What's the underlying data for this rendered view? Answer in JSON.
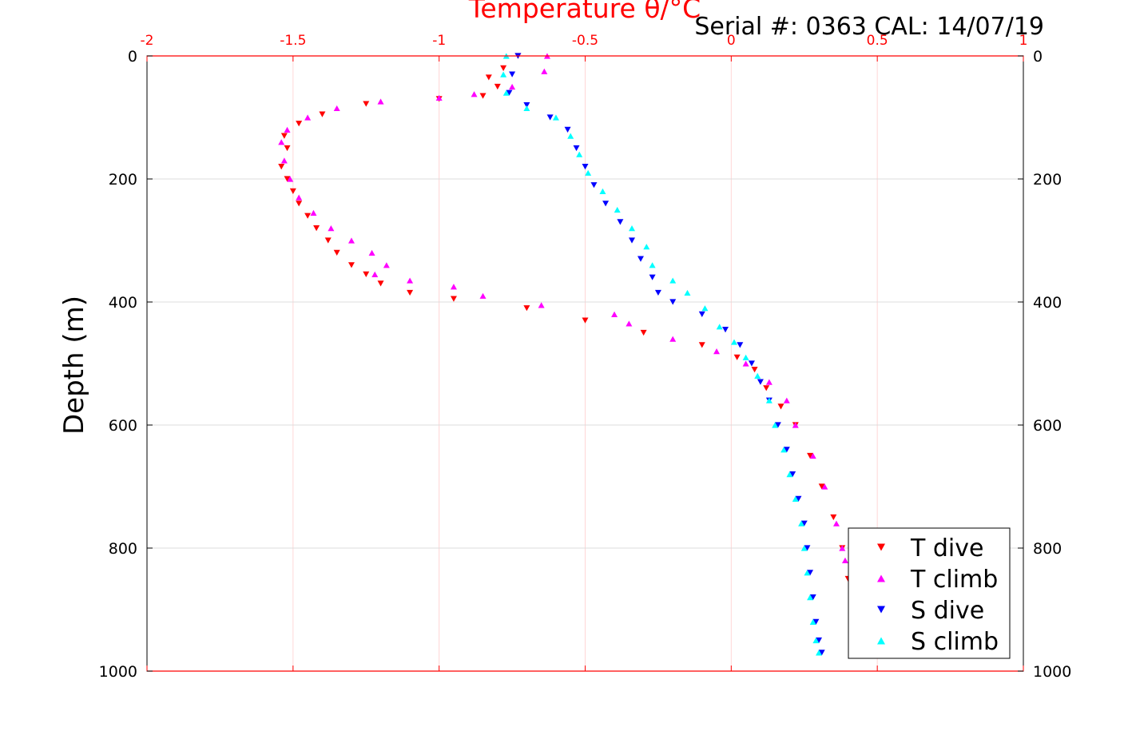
{
  "chart_data": {
    "type": "scatter",
    "title": "Temperature θ/°C",
    "annotation": "Serial #: 0363  CAL: 14/07/19",
    "ylabel": "Depth (m)",
    "xlim": [
      -2,
      1
    ],
    "ylim": [
      0,
      1000
    ],
    "y_reversed": true,
    "x_axis_position": "top",
    "xticks": [
      "-2",
      "-1.5",
      "-1",
      "-0.5",
      "0",
      "0.5",
      "1"
    ],
    "yticks": [
      "0",
      "200",
      "400",
      "600",
      "800",
      "1000"
    ],
    "grid": true,
    "legend_position": "bottom-right",
    "colors": {
      "x_axis": "#ff0000",
      "y_axis": "#000000",
      "grid": "#d9d9d9"
    },
    "series": [
      {
        "name": "T dive",
        "marker": "triangle-down",
        "color": "#ff0000",
        "points": [
          [
            -0.73,
            0
          ],
          [
            -0.78,
            20
          ],
          [
            -0.83,
            35
          ],
          [
            -0.8,
            50
          ],
          [
            -0.85,
            65
          ],
          [
            -1.0,
            70
          ],
          [
            -1.25,
            78
          ],
          [
            -1.4,
            95
          ],
          [
            -1.48,
            110
          ],
          [
            -1.53,
            130
          ],
          [
            -1.52,
            150
          ],
          [
            -1.54,
            180
          ],
          [
            -1.52,
            200
          ],
          [
            -1.5,
            220
          ],
          [
            -1.48,
            240
          ],
          [
            -1.45,
            260
          ],
          [
            -1.42,
            280
          ],
          [
            -1.38,
            300
          ],
          [
            -1.35,
            320
          ],
          [
            -1.3,
            340
          ],
          [
            -1.25,
            355
          ],
          [
            -1.2,
            370
          ],
          [
            -1.1,
            385
          ],
          [
            -0.95,
            395
          ],
          [
            -0.7,
            410
          ],
          [
            -0.5,
            430
          ],
          [
            -0.3,
            450
          ],
          [
            -0.1,
            470
          ],
          [
            0.02,
            490
          ],
          [
            0.08,
            510
          ],
          [
            0.12,
            540
          ],
          [
            0.17,
            570
          ],
          [
            0.22,
            600
          ],
          [
            0.27,
            650
          ],
          [
            0.31,
            700
          ],
          [
            0.35,
            750
          ],
          [
            0.38,
            800
          ],
          [
            0.4,
            850
          ]
        ]
      },
      {
        "name": "T climb",
        "marker": "triangle-up",
        "color": "#ff00ff",
        "points": [
          [
            -0.63,
            0
          ],
          [
            -0.64,
            25
          ],
          [
            -0.75,
            50
          ],
          [
            -0.88,
            62
          ],
          [
            -1.0,
            68
          ],
          [
            -1.2,
            74
          ],
          [
            -1.35,
            85
          ],
          [
            -1.45,
            100
          ],
          [
            -1.52,
            120
          ],
          [
            -1.54,
            140
          ],
          [
            -1.53,
            170
          ],
          [
            -1.51,
            200
          ],
          [
            -1.48,
            230
          ],
          [
            -1.43,
            255
          ],
          [
            -1.37,
            280
          ],
          [
            -1.3,
            300
          ],
          [
            -1.23,
            320
          ],
          [
            -1.18,
            340
          ],
          [
            -1.22,
            355
          ],
          [
            -1.1,
            365
          ],
          [
            -0.95,
            375
          ],
          [
            -0.85,
            390
          ],
          [
            -0.65,
            405
          ],
          [
            -0.4,
            420
          ],
          [
            -0.35,
            435
          ],
          [
            -0.2,
            460
          ],
          [
            -0.05,
            480
          ],
          [
            0.05,
            500
          ],
          [
            0.13,
            530
          ],
          [
            0.19,
            560
          ],
          [
            0.22,
            600
          ],
          [
            0.28,
            650
          ],
          [
            0.32,
            700
          ],
          [
            0.36,
            760
          ],
          [
            0.38,
            800
          ],
          [
            0.39,
            820
          ]
        ]
      },
      {
        "name": "S dive",
        "marker": "triangle-down",
        "color": "#0000ff",
        "points": [
          [
            -0.73,
            0
          ],
          [
            -0.75,
            30
          ],
          [
            -0.76,
            60
          ],
          [
            -0.7,
            80
          ],
          [
            -0.62,
            100
          ],
          [
            -0.56,
            120
          ],
          [
            -0.53,
            150
          ],
          [
            -0.5,
            180
          ],
          [
            -0.47,
            210
          ],
          [
            -0.43,
            240
          ],
          [
            -0.38,
            270
          ],
          [
            -0.34,
            300
          ],
          [
            -0.31,
            330
          ],
          [
            -0.27,
            360
          ],
          [
            -0.25,
            385
          ],
          [
            -0.2,
            400
          ],
          [
            -0.1,
            420
          ],
          [
            -0.02,
            445
          ],
          [
            0.03,
            470
          ],
          [
            0.07,
            500
          ],
          [
            0.1,
            530
          ],
          [
            0.13,
            560
          ],
          [
            0.16,
            600
          ],
          [
            0.19,
            640
          ],
          [
            0.21,
            680
          ],
          [
            0.23,
            720
          ],
          [
            0.25,
            760
          ],
          [
            0.26,
            800
          ],
          [
            0.27,
            840
          ],
          [
            0.28,
            880
          ],
          [
            0.29,
            920
          ],
          [
            0.3,
            950
          ],
          [
            0.31,
            970
          ]
        ]
      },
      {
        "name": "S climb",
        "marker": "triangle-up",
        "color": "#00ffff",
        "points": [
          [
            -0.77,
            0
          ],
          [
            -0.78,
            30
          ],
          [
            -0.77,
            60
          ],
          [
            -0.7,
            85
          ],
          [
            -0.6,
            100
          ],
          [
            -0.55,
            130
          ],
          [
            -0.52,
            160
          ],
          [
            -0.49,
            190
          ],
          [
            -0.44,
            220
          ],
          [
            -0.39,
            250
          ],
          [
            -0.34,
            280
          ],
          [
            -0.29,
            310
          ],
          [
            -0.27,
            340
          ],
          [
            -0.2,
            365
          ],
          [
            -0.15,
            385
          ],
          [
            -0.09,
            410
          ],
          [
            -0.04,
            440
          ],
          [
            0.01,
            465
          ],
          [
            0.05,
            490
          ],
          [
            0.09,
            520
          ],
          [
            0.13,
            560
          ],
          [
            0.15,
            600
          ],
          [
            0.18,
            640
          ],
          [
            0.2,
            680
          ],
          [
            0.22,
            720
          ],
          [
            0.24,
            760
          ],
          [
            0.25,
            800
          ],
          [
            0.26,
            840
          ],
          [
            0.27,
            880
          ],
          [
            0.28,
            920
          ],
          [
            0.29,
            950
          ],
          [
            0.3,
            970
          ]
        ]
      }
    ]
  }
}
